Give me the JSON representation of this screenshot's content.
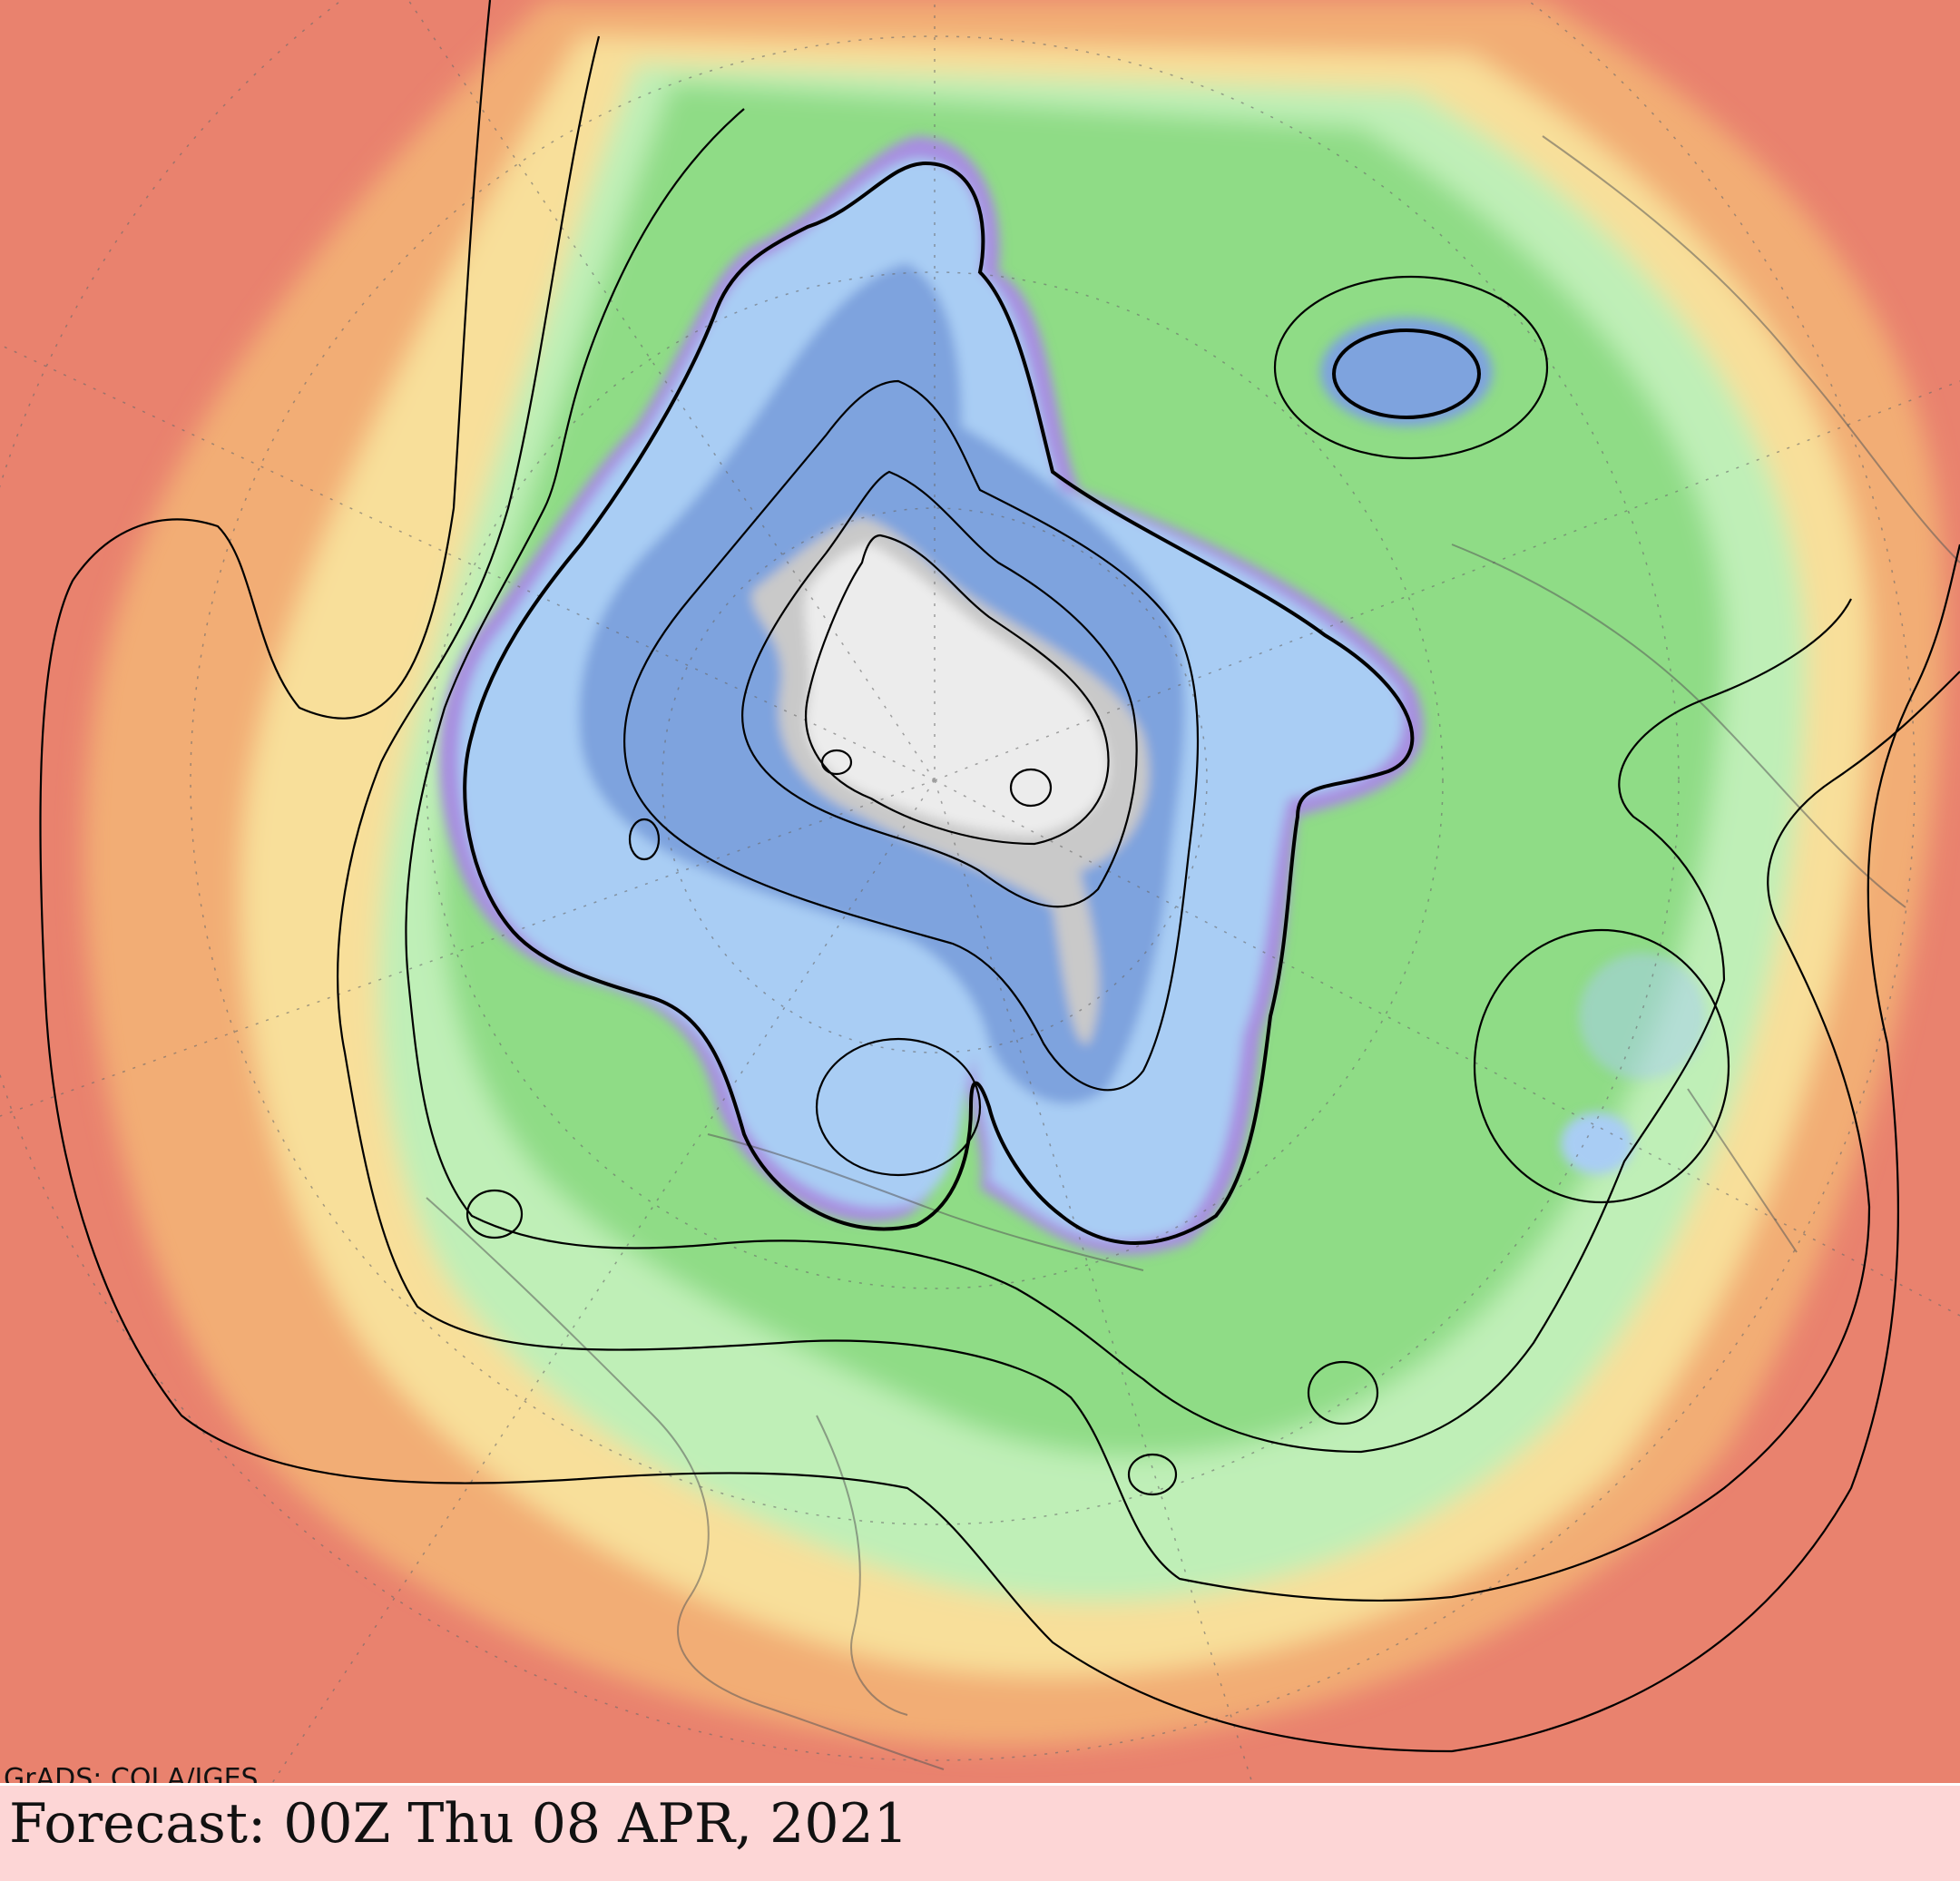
{
  "map": {
    "credit": "GrADS: COLA/IGES",
    "projection": "polar-stereographic",
    "center": "north-pole",
    "colors": {
      "warm_outer": "#e9826e",
      "orange": "#f2ad74",
      "yellow": "#f8df9a",
      "light_green": "#bfefb7",
      "green": "#8fdc86",
      "light_blue": "#a9cdf4",
      "blue": "#7ea3de",
      "lavender": "#a78ee0",
      "grey_core": "#c9c9c9",
      "contour": "#000000"
    }
  },
  "footer": {
    "forecast": "Forecast: 00Z Thu 08 APR, 2021"
  }
}
